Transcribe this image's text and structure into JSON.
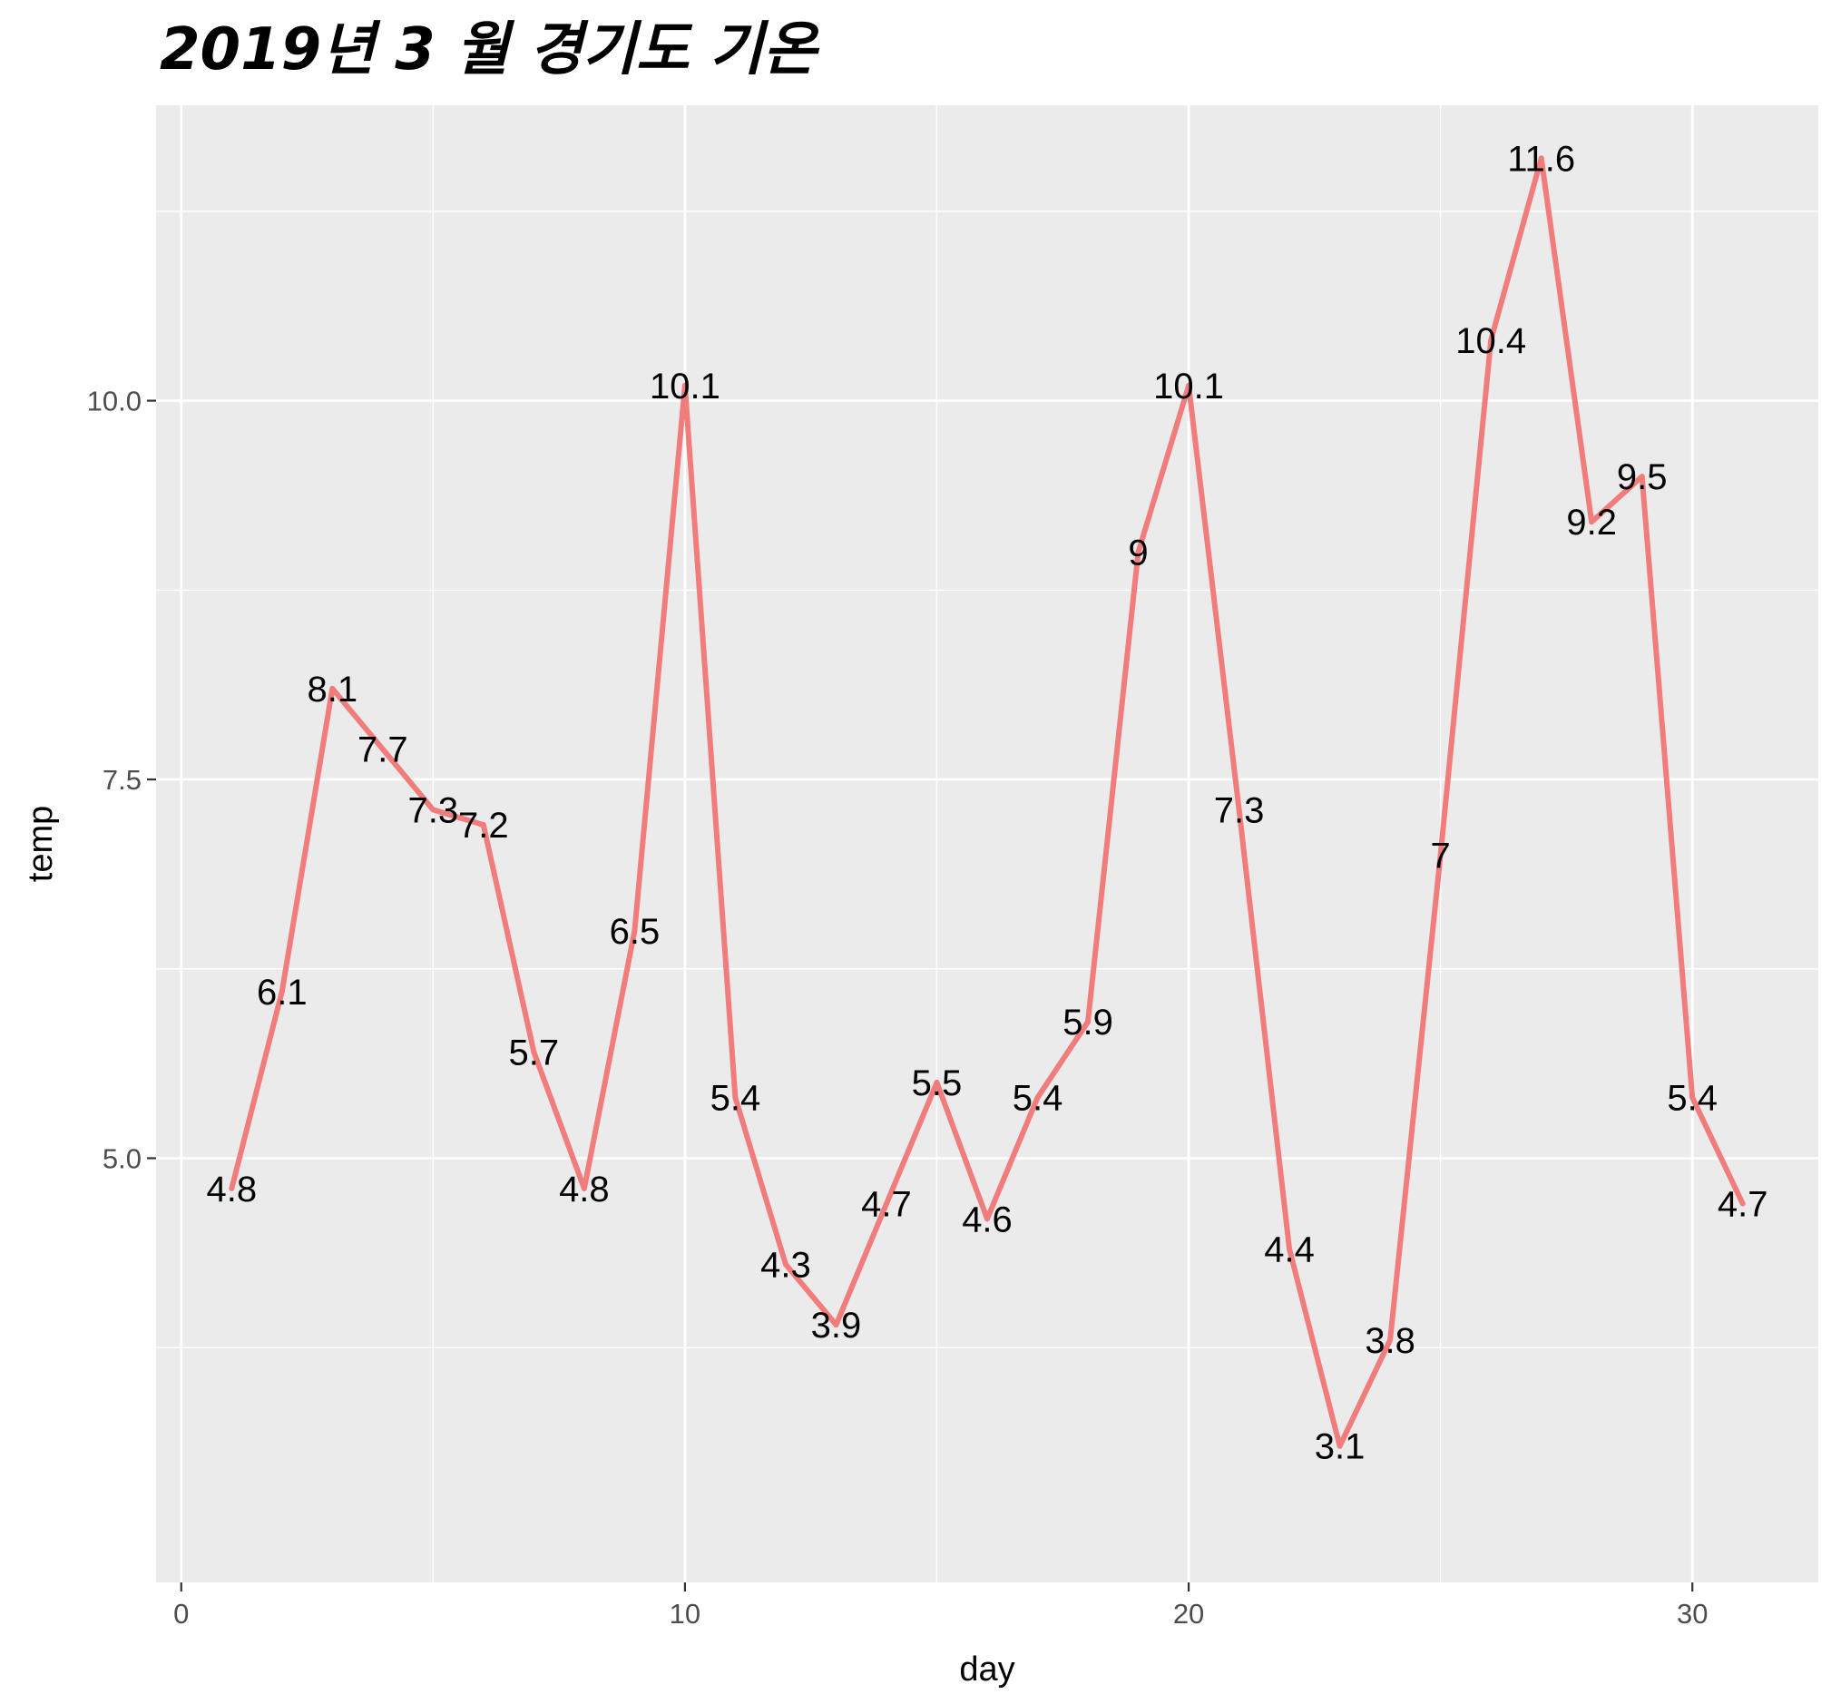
{
  "chart_data": {
    "type": "line",
    "title": "2019년 3 월 경기도 기온",
    "xlabel": "day",
    "ylabel": "temp",
    "xlim": [
      -0.5,
      32.5
    ],
    "ylim": [
      2.2,
      11.95
    ],
    "x_ticks": [
      0,
      10,
      20,
      30
    ],
    "x_tick_labels": [
      "0",
      "10",
      "20",
      "30"
    ],
    "y_ticks": [
      5.0,
      7.5,
      10.0
    ],
    "y_tick_labels": [
      "5.0",
      "7.5",
      "10.0"
    ],
    "grid": true,
    "series": [
      {
        "color": "#f07c7c",
        "x": [
          1,
          2,
          3,
          4,
          5,
          6,
          7,
          8,
          9,
          10,
          11,
          12,
          13,
          14,
          15,
          16,
          17,
          18,
          19,
          20,
          21,
          22,
          23,
          24,
          25,
          26,
          27,
          28,
          29,
          30,
          31
        ],
        "y": [
          4.8,
          6.1,
          8.1,
          7.7,
          7.3,
          7.2,
          5.7,
          4.8,
          6.5,
          10.1,
          5.4,
          4.3,
          3.9,
          4.7,
          5.5,
          4.6,
          5.4,
          5.9,
          9,
          10.1,
          7.3,
          4.4,
          3.1,
          3.8,
          7,
          10.4,
          11.6,
          9.2,
          9.5,
          5.4,
          4.7
        ],
        "labels": [
          "4.8",
          "6.1",
          "8.1",
          "7.7",
          "7.3",
          "7.2",
          "5.7",
          "4.8",
          "6.5",
          "10.1",
          "5.4",
          "4.3",
          "3.9",
          "4.7",
          "5.5",
          "4.6",
          "5.4",
          "5.9",
          "9",
          "10.1",
          "7.3",
          "4.4",
          "3.1",
          "3.8",
          "7",
          "10.4",
          "11.6",
          "9.2",
          "9.5",
          "5.4",
          "4.7"
        ]
      }
    ],
    "colors": {
      "panel_background": "#ebebeb",
      "gridline": "#ffffff",
      "line": "#f07c7c",
      "tick_label": "#4d4d4d"
    }
  }
}
